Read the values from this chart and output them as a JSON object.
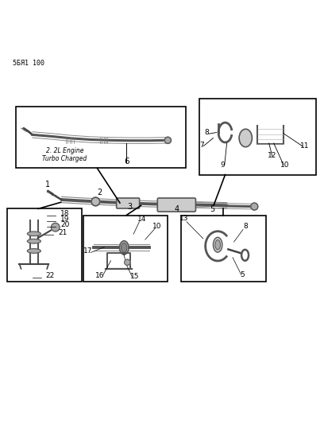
{
  "title": "5БЯ1 100",
  "bg_color": "#ffffff",
  "line_color": "#000000",
  "part_color": "#444444",
  "box_color": "#000000"
}
